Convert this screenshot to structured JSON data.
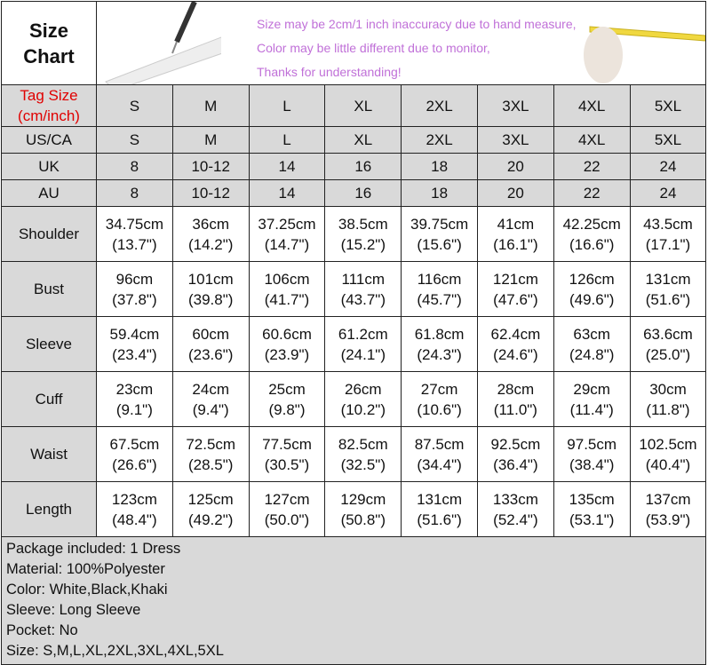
{
  "title": [
    "Size",
    "Chart"
  ],
  "banner": {
    "lines": [
      "Size may be 2cm/1 inch inaccuracy due to hand measure,",
      "Color may be little different due to monitor,",
      "Thanks for understanding!"
    ],
    "text_color": "#c070d8"
  },
  "tag_size_label": [
    "Tag Size",
    "(cm/inch)"
  ],
  "tag_label_color": "#e00000",
  "size_rows": [
    {
      "label": "US/CA",
      "values": [
        "S",
        "M",
        "L",
        "XL",
        "2XL",
        "3XL",
        "4XL",
        "5XL"
      ]
    },
    {
      "label": "UK",
      "values": [
        "8",
        "10-12",
        "14",
        "16",
        "18",
        "20",
        "22",
        "24"
      ]
    },
    {
      "label": "AU",
      "values": [
        "8",
        "10-12",
        "14",
        "16",
        "18",
        "20",
        "22",
        "24"
      ]
    }
  ],
  "tag_sizes": [
    "S",
    "M",
    "L",
    "XL",
    "2XL",
    "3XL",
    "4XL",
    "5XL"
  ],
  "measurements": [
    {
      "label": "Shoulder",
      "cm": [
        "34.75cm",
        "36cm",
        "37.25cm",
        "38.5cm",
        "39.75cm",
        "41cm",
        "42.25cm",
        "43.5cm"
      ],
      "inch": [
        "(13.7\")",
        "(14.2\")",
        "(14.7\")",
        "(15.2\")",
        "(15.6\")",
        "(16.1\")",
        "(16.6\")",
        "(17.1\")"
      ]
    },
    {
      "label": "Bust",
      "cm": [
        "96cm",
        "101cm",
        "106cm",
        "111cm",
        "116cm",
        "121cm",
        "126cm",
        "131cm"
      ],
      "inch": [
        "(37.8\")",
        "(39.8\")",
        "(41.7\")",
        "(43.7\")",
        "(45.7\")",
        "(47.6\")",
        "(49.6\")",
        "(51.6\")"
      ]
    },
    {
      "label": "Sleeve",
      "cm": [
        "59.4cm",
        "60cm",
        "60.6cm",
        "61.2cm",
        "61.8cm",
        "62.4cm",
        "63cm",
        "63.6cm"
      ],
      "inch": [
        "(23.4\")",
        "(23.6\")",
        "(23.9\")",
        "(24.1\")",
        "(24.3\")",
        "(24.6\")",
        "(24.8\")",
        "(25.0\")"
      ]
    },
    {
      "label": "Cuff",
      "cm": [
        "23cm",
        "24cm",
        "25cm",
        "26cm",
        "27cm",
        "28cm",
        "29cm",
        "30cm"
      ],
      "inch": [
        "(9.1\")",
        "(9.4\")",
        "(9.8\")",
        "(10.2\")",
        "(10.6\")",
        "(11.0\")",
        "(11.4\")",
        "(11.8\")"
      ]
    },
    {
      "label": "Waist",
      "cm": [
        "67.5cm",
        "72.5cm",
        "77.5cm",
        "82.5cm",
        "87.5cm",
        "92.5cm",
        "97.5cm",
        "102.5cm"
      ],
      "inch": [
        "(26.6\")",
        "(28.5\")",
        "(30.5\")",
        "(32.5\")",
        "(34.4\")",
        "(36.4\")",
        "(38.4\")",
        "(40.4\")"
      ]
    },
    {
      "label": "Length",
      "cm": [
        "123cm",
        "125cm",
        "127cm",
        "129cm",
        "131cm",
        "133cm",
        "135cm",
        "137cm"
      ],
      "inch": [
        "(48.4\")",
        "(49.2\")",
        "(50.0\")",
        "(50.8\")",
        "(51.6\")",
        "(52.4\")",
        "(53.1\")",
        "(53.9\")"
      ]
    }
  ],
  "notes": [
    "Package included: 1 Dress",
    "Material: 100%Polyester",
    "Color: White,Black,Khaki",
    "Sleeve: Long Sleeve",
    "Pocket: No",
    "Size: S,M,L,XL,2XL,3XL,4XL,5XL"
  ]
}
